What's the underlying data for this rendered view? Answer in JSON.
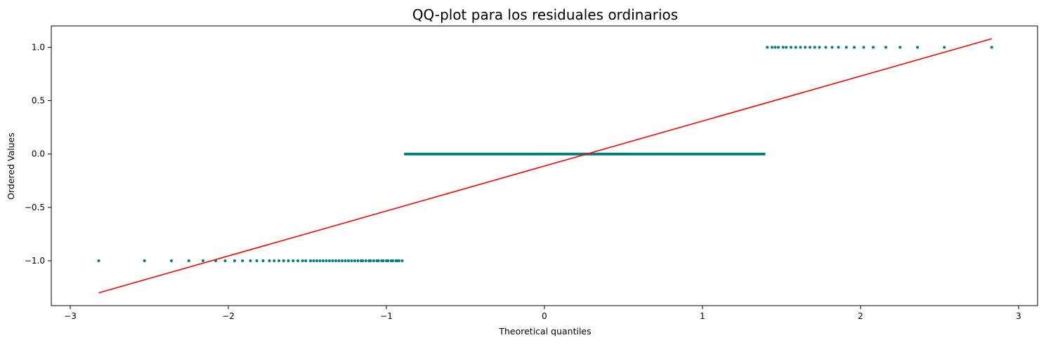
{
  "chart_data": {
    "type": "scatter",
    "title": "QQ-plot para los residuales ordinarios",
    "xlabel": "Theoretical quantiles",
    "ylabel": "Ordered Values",
    "xlim": [
      -3.12,
      3.12
    ],
    "ylim": [
      -1.42,
      1.2
    ],
    "x_ticks": [
      -3,
      -2,
      -1,
      0,
      1,
      2,
      3
    ],
    "x_tick_labels": [
      "−3",
      "−2",
      "−1",
      "0",
      "1",
      "2",
      "3"
    ],
    "y_ticks": [
      -1.0,
      -0.5,
      0.0,
      0.5,
      1.0
    ],
    "y_tick_labels": [
      "−1.0",
      "−0.5",
      "0.0",
      "0.5",
      "1.0"
    ],
    "grid": false,
    "legend": "none",
    "points": {
      "color": "#007c7c",
      "levels": [
        {
          "y": -1.0,
          "x": [
            -2.82,
            -2.53,
            -2.36,
            -2.25,
            -2.16,
            -2.08,
            -2.02,
            -1.96,
            -1.91,
            -1.86,
            -1.82,
            -1.78,
            -1.74,
            -1.71,
            -1.68,
            -1.65,
            -1.62,
            -1.59,
            -1.56,
            -1.53,
            -1.51,
            -1.48,
            -1.46,
            -1.44,
            -1.42,
            -1.4,
            -1.38,
            -1.36,
            -1.34,
            -1.32,
            -1.3,
            -1.28,
            -1.26,
            -1.24,
            -1.22,
            -1.2,
            -1.18,
            -1.16,
            -1.15,
            -1.13,
            -1.11,
            -1.1,
            -1.08,
            -1.06,
            -1.05,
            -1.03,
            -1.02,
            -1.0,
            -0.99,
            -0.97,
            -0.96,
            -0.94,
            -0.93,
            -0.92,
            -0.9
          ]
        },
        {
          "y": 0.0,
          "x_range": [
            -0.88,
            1.39
          ],
          "n": 300
        },
        {
          "y": 1.0,
          "x": [
            1.41,
            1.44,
            1.46,
            1.48,
            1.51,
            1.53,
            1.56,
            1.59,
            1.62,
            1.65,
            1.68,
            1.71,
            1.74,
            1.78,
            1.82,
            1.86,
            1.91,
            1.96,
            2.02,
            2.08,
            2.16,
            2.25,
            2.36,
            2.53,
            2.83
          ]
        }
      ]
    },
    "fit_line": {
      "color": "#ff0000",
      "x": [
        -2.82,
        2.83
      ],
      "y": [
        -1.3,
        1.08
      ]
    }
  }
}
